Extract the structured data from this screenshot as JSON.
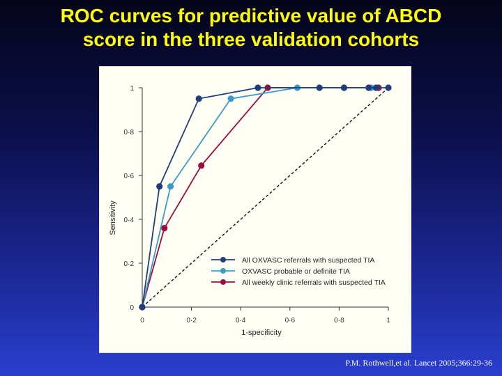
{
  "slide": {
    "title_line1": "ROC curves for predictive value of ABCD",
    "title_line2": "score in the three validation cohorts",
    "citation": "P.M. Rothwell,et al. Lancet 2005;366:29-36"
  },
  "chart_data": {
    "type": "line",
    "title": "",
    "xlabel": "1-specificity",
    "ylabel": "Sensitivity",
    "xlim": [
      0,
      1
    ],
    "ylim": [
      0,
      1
    ],
    "x_ticks": [
      "0",
      "0·2",
      "0·4",
      "0·6",
      "0·8",
      "1"
    ],
    "y_ticks": [
      "0",
      "0·2",
      "0·4",
      "0·6",
      "0·8",
      "1"
    ],
    "grid": false,
    "legend_position": "lower-right",
    "reference_line": {
      "x": [
        0,
        1
      ],
      "y": [
        0,
        1
      ],
      "style": "dashed"
    },
    "series": [
      {
        "name": "All OXVASC referrals with suspected TIA",
        "color": "#1f3d7a",
        "x": [
          0,
          0.07,
          0.23,
          0.47,
          0.72,
          0.82,
          0.92,
          0.95,
          1.0
        ],
        "y": [
          0,
          0.55,
          0.95,
          1.0,
          1.0,
          1.0,
          1.0,
          1.0,
          1.0
        ]
      },
      {
        "name": "OXVASC probable or definite TIA",
        "color": "#3a9cc4",
        "x": [
          0,
          0.115,
          0.36,
          0.63,
          0.82,
          0.93
        ],
        "y": [
          0,
          0.55,
          0.95,
          1.0,
          1.0,
          1.0
        ]
      },
      {
        "name": "All weekly clinic referrals with suspected TIA",
        "color": "#9a0e3f",
        "x": [
          0,
          0.09,
          0.24,
          0.51,
          0.96
        ],
        "y": [
          0,
          0.36,
          0.645,
          1.0,
          1.0
        ]
      }
    ]
  }
}
